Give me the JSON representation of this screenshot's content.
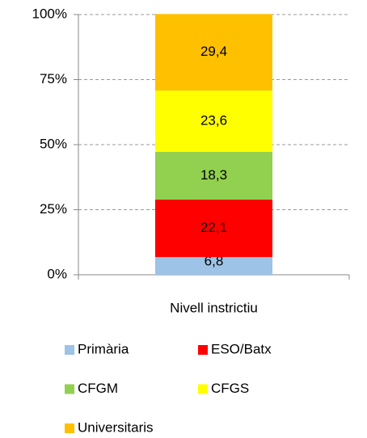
{
  "chart_data": {
    "type": "stacked_bar",
    "categories": [
      "Nivell instrictiu"
    ],
    "series": [
      {
        "name": "Primària",
        "color": "#9dc3e6",
        "values": [
          6.8
        ],
        "value_labels": [
          "6,8"
        ]
      },
      {
        "name": "ESO/Batx",
        "color": "#ff0000",
        "values": [
          22.1
        ],
        "value_labels": [
          "22,1"
        ]
      },
      {
        "name": "CFGM",
        "color": "#92d050",
        "values": [
          18.3
        ],
        "value_labels": [
          "18,3"
        ]
      },
      {
        "name": "CFGS",
        "color": "#ffff00",
        "values": [
          23.6
        ],
        "value_labels": [
          "23,6"
        ]
      },
      {
        "name": "Universitaris",
        "color": "#ffc000",
        "values": [
          29.4
        ],
        "value_labels": [
          "29,4"
        ]
      }
    ],
    "ylim": [
      0,
      100
    ],
    "yticks": [
      {
        "value": 0,
        "label": "0%"
      },
      {
        "value": 25,
        "label": "25%"
      },
      {
        "value": 50,
        "label": "50%"
      },
      {
        "value": 75,
        "label": "75%"
      },
      {
        "value": 100,
        "label": "100%"
      }
    ],
    "grid": true,
    "legend": "bottom"
  }
}
